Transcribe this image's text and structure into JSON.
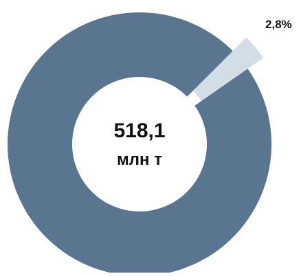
{
  "chart_data": {
    "type": "pie",
    "style": "donut-exploded",
    "center_value": "518,1",
    "center_unit": "млн т",
    "slices": [
      {
        "value": 97.2,
        "label": "",
        "color": "#5a7590",
        "exploded": false
      },
      {
        "value": 2.8,
        "label": "2,8%",
        "color": "#d3dde5",
        "exploded": true
      }
    ],
    "legend": "none"
  }
}
